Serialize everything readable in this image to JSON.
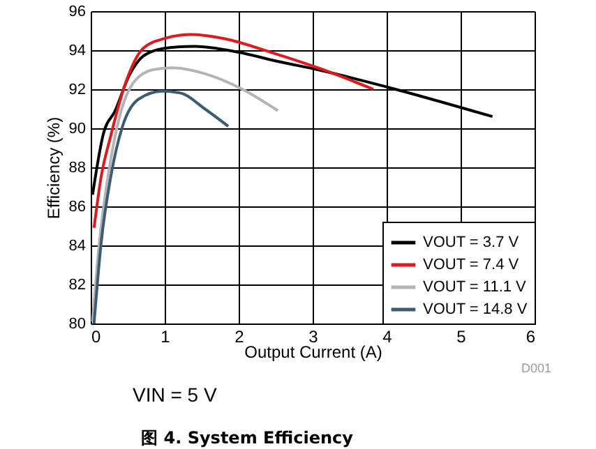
{
  "chart_data": {
    "type": "line",
    "title": "图 4. System Efficiency",
    "xlabel": "Output Current (A)",
    "ylabel": "Efficiency (%)",
    "annotations": [
      "D001",
      "VIN = 5 V"
    ],
    "series": [
      {
        "name": "VOUT = 3.7 V",
        "color": "#000000",
        "x": [
          0.025,
          0.17,
          0.33,
          0.52,
          0.71,
          1.0,
          1.41,
          1.99,
          2.56,
          3.07,
          4.02,
          5.43
        ],
        "values": [
          86.6,
          89.7,
          90.9,
          92.7,
          93.7,
          94.1,
          94.2,
          93.9,
          93.4,
          93.0,
          92.1,
          90.6
        ]
      },
      {
        "name": "VOUT = 7.4 V",
        "color": "#e0191f",
        "x": [
          0.045,
          0.14,
          0.27,
          0.46,
          0.71,
          1.0,
          1.35,
          1.8,
          2.43,
          3.07,
          3.82
        ],
        "values": [
          84.9,
          87.5,
          89.6,
          92.2,
          94.1,
          94.6,
          94.8,
          94.6,
          93.9,
          93.1,
          92.0
        ]
      },
      {
        "name": "VOUT = 11.1 V",
        "color": "#b4b4b4",
        "x": [
          0.025,
          0.11,
          0.24,
          0.39,
          0.59,
          0.84,
          1.1,
          1.54,
          2.05,
          2.53
        ],
        "values": [
          80.1,
          83.9,
          87.7,
          90.6,
          92.4,
          93.0,
          93.1,
          92.8,
          92.0,
          90.9
        ]
      },
      {
        "name": "VOUT = 14.8 V",
        "color": "#3b5c73",
        "x": [
          0.045,
          0.14,
          0.27,
          0.43,
          0.65,
          0.97,
          1.22,
          1.54,
          1.86
        ],
        "values": [
          80.0,
          84.1,
          87.5,
          90.1,
          91.5,
          91.9,
          91.8,
          91.0,
          90.1
        ]
      }
    ],
    "xlim": [
      0,
      6
    ],
    "xticks": [
      0,
      1,
      2,
      3,
      4,
      5,
      6
    ],
    "ylim": [
      80,
      96
    ],
    "yticks": [
      80,
      82,
      84,
      86,
      88,
      90,
      92,
      94,
      96
    ],
    "grid": true,
    "legend": "bottom right",
    "line_style": "solid",
    "marker": "none"
  }
}
